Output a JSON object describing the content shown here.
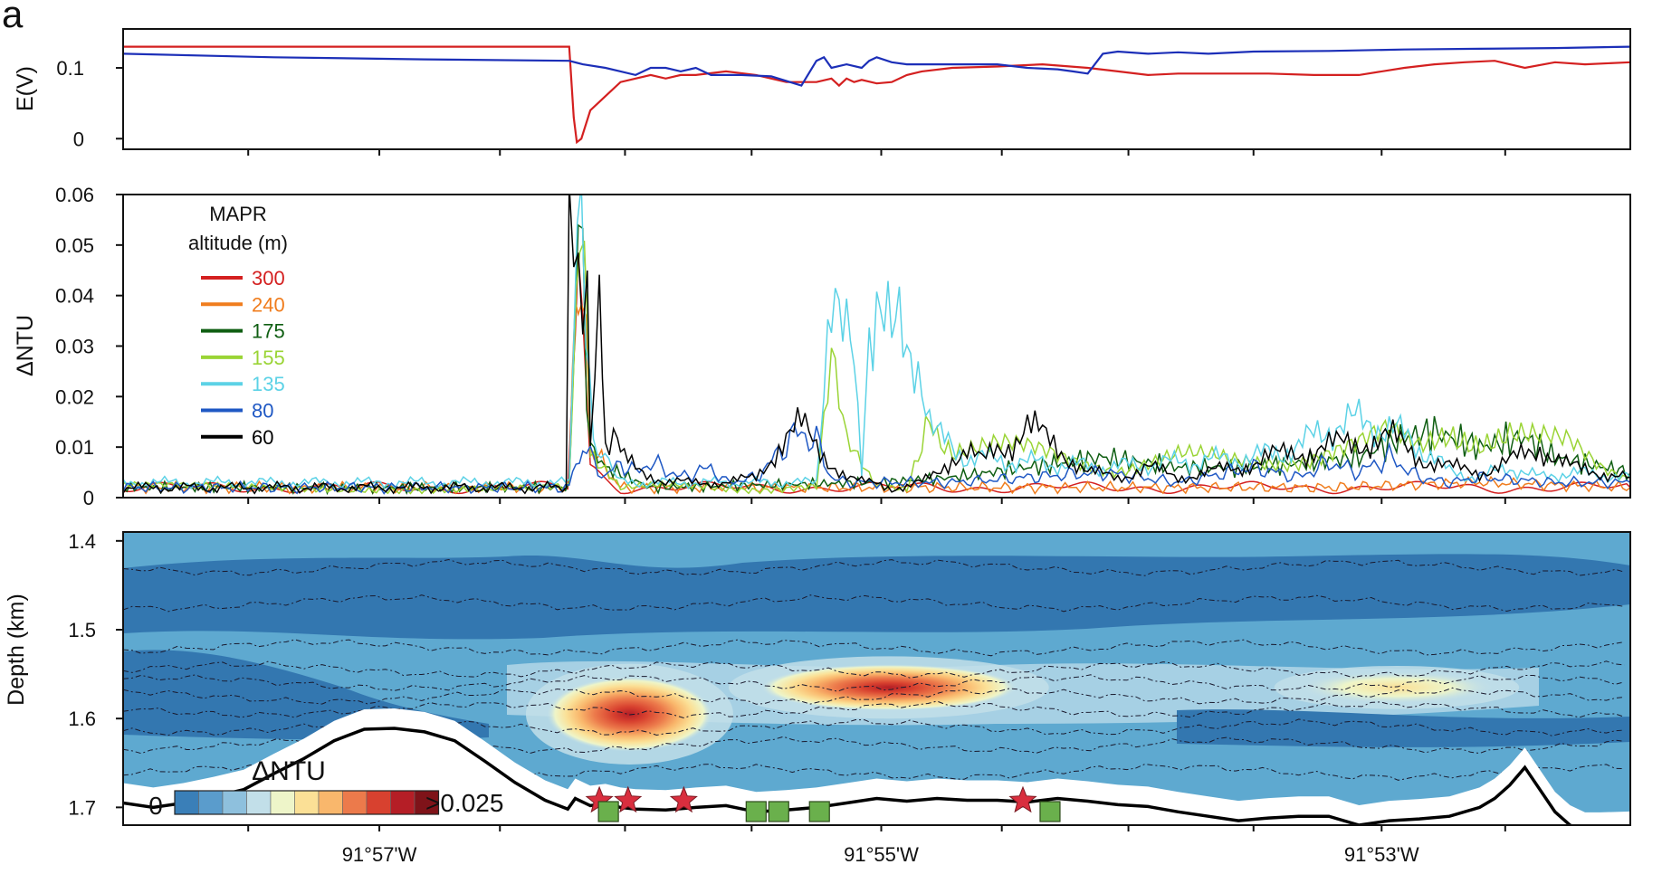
{
  "panel_label": "a",
  "chart_data": [
    {
      "type": "line",
      "ylabel": "E(V)",
      "ylim": [
        -0.015,
        0.155
      ],
      "yticks": [
        0,
        0.1
      ],
      "xlim": [
        0,
        100
      ],
      "series": [
        {
          "color": "#d42020",
          "x": [
            0,
            29.6,
            29.9,
            30.1,
            30.4,
            31,
            32,
            33,
            34,
            35,
            36,
            37,
            38,
            40,
            42,
            44,
            46,
            47,
            47.5,
            48,
            48.5,
            49,
            50,
            51,
            52,
            53,
            55,
            58,
            61,
            64,
            66,
            68,
            70,
            73,
            76,
            79,
            82,
            85,
            87,
            89,
            91,
            93,
            95,
            97,
            100
          ],
          "y": [
            0.13,
            0.13,
            0.03,
            -0.005,
            0,
            0.04,
            0.06,
            0.08,
            0.085,
            0.09,
            0.085,
            0.09,
            0.09,
            0.095,
            0.09,
            0.08,
            0.08,
            0.085,
            0.075,
            0.085,
            0.08,
            0.083,
            0.078,
            0.08,
            0.09,
            0.095,
            0.1,
            0.102,
            0.105,
            0.1,
            0.095,
            0.09,
            0.092,
            0.092,
            0.092,
            0.09,
            0.09,
            0.1,
            0.105,
            0.108,
            0.11,
            0.1,
            0.108,
            0.105,
            0.108
          ]
        },
        {
          "color": "#1c2fb8",
          "x": [
            0,
            10,
            20,
            29.6,
            30.5,
            32,
            33,
            34,
            35,
            36,
            37,
            38,
            39,
            40,
            41,
            43,
            45,
            46,
            46.5,
            47,
            48,
            49,
            49.5,
            50,
            51,
            52,
            55,
            58,
            60,
            62,
            63,
            64,
            65,
            66,
            68,
            70,
            72,
            75,
            80,
            85,
            90,
            95,
            100
          ],
          "y": [
            0.12,
            0.115,
            0.112,
            0.11,
            0.105,
            0.1,
            0.095,
            0.09,
            0.1,
            0.1,
            0.095,
            0.1,
            0.09,
            0.09,
            0.09,
            0.088,
            0.075,
            0.11,
            0.115,
            0.1,
            0.105,
            0.1,
            0.11,
            0.115,
            0.108,
            0.105,
            0.105,
            0.105,
            0.1,
            0.098,
            0.095,
            0.092,
            0.12,
            0.123,
            0.12,
            0.122,
            0.12,
            0.123,
            0.124,
            0.126,
            0.127,
            0.128,
            0.13
          ]
        }
      ]
    },
    {
      "type": "line",
      "ylabel": "ΔNTU",
      "ylim": [
        0,
        0.06
      ],
      "yticks": [
        0,
        0.01,
        0.02,
        0.03,
        0.04,
        0.05,
        0.06
      ],
      "xlim": [
        0,
        100
      ],
      "legend_title": [
        "MAPR",
        "altitude (m)"
      ],
      "legend_position": "top-left",
      "series": [
        {
          "name": "300",
          "color": "#d42020",
          "x": [
            0,
            29.5,
            29.8,
            30.2,
            31,
            33,
            100
          ],
          "y": [
            0.002,
            0.002,
            0.03,
            0.04,
            0.006,
            0.002,
            0.002
          ]
        },
        {
          "name": "240",
          "color": "#f07d1e",
          "x": [
            0,
            29.6,
            30,
            30.4,
            31,
            33,
            80,
            90,
            100
          ],
          "y": [
            0.002,
            0.002,
            0.04,
            0.05,
            0.01,
            0.002,
            0.002,
            0.003,
            0.002
          ]
        },
        {
          "name": "175",
          "color": "#0f5e12",
          "x": [
            0,
            29.6,
            30.2,
            30.5,
            31,
            32,
            35,
            50,
            55,
            60,
            65,
            70,
            75,
            82,
            85,
            87,
            90,
            93,
            95,
            100
          ],
          "y": [
            0.002,
            0.002,
            0.05,
            0.04,
            0.01,
            0.006,
            0.002,
            0.003,
            0.004,
            0.006,
            0.008,
            0.006,
            0.006,
            0.008,
            0.012,
            0.013,
            0.01,
            0.012,
            0.008,
            0.005
          ]
        },
        {
          "name": "155",
          "color": "#9ad435",
          "x": [
            0,
            29.6,
            30.3,
            30.6,
            31,
            33,
            40,
            46,
            47,
            48,
            50,
            51,
            52,
            53,
            53.5,
            54,
            55,
            58,
            62,
            66,
            70,
            74,
            78,
            82,
            84,
            86,
            88,
            90,
            92,
            94,
            96,
            98,
            100
          ],
          "y": [
            0.002,
            0.002,
            0.06,
            0.05,
            0.01,
            0.002,
            0.002,
            0.002,
            0.025,
            0.01,
            0.002,
            0.002,
            0.002,
            0.012,
            0.02,
            0.014,
            0.01,
            0.01,
            0.008,
            0.006,
            0.008,
            0.007,
            0.008,
            0.01,
            0.012,
            0.01,
            0.014,
            0.012,
            0.013,
            0.011,
            0.01,
            0.006,
            0.004
          ]
        },
        {
          "name": "135",
          "color": "#5cd2e6",
          "x": [
            0,
            29.6,
            30.4,
            30.7,
            31.2,
            33,
            40,
            46,
            46.5,
            47,
            47.5,
            48,
            48.5,
            49,
            49.5,
            50,
            50.5,
            51,
            51.5,
            52,
            52.5,
            53,
            53.5,
            54,
            56,
            60,
            65,
            70,
            75,
            78,
            80,
            82,
            83,
            85,
            86,
            87,
            88,
            90,
            92,
            94,
            96,
            100
          ],
          "y": [
            0.003,
            0.003,
            0.06,
            0.04,
            0.01,
            0.003,
            0.003,
            0.003,
            0.025,
            0.047,
            0.036,
            0.03,
            0.025,
            0.005,
            0.035,
            0.042,
            0.038,
            0.03,
            0.032,
            0.028,
            0.03,
            0.025,
            0.015,
            0.012,
            0.008,
            0.007,
            0.006,
            0.007,
            0.008,
            0.01,
            0.014,
            0.015,
            0.015,
            0.012,
            0.01,
            0.008,
            0.005,
            0.004,
            0.006,
            0.004,
            0.005,
            0.004
          ]
        },
        {
          "name": "80",
          "color": "#1f58c4",
          "x": [
            0,
            29.6,
            30.5,
            31,
            32,
            33,
            34,
            35,
            37,
            39,
            40,
            42,
            43,
            44,
            45,
            46,
            47,
            48,
            50,
            55,
            60,
            65,
            70,
            75,
            78,
            80,
            82,
            84,
            86,
            88,
            90,
            95,
            100
          ],
          "y": [
            0.002,
            0.002,
            0.01,
            0.008,
            0.004,
            0.007,
            0.005,
            0.007,
            0.004,
            0.006,
            0.003,
            0.004,
            0.007,
            0.011,
            0.013,
            0.011,
            0.004,
            0.003,
            0.003,
            0.003,
            0.004,
            0.005,
            0.003,
            0.006,
            0.004,
            0.007,
            0.005,
            0.008,
            0.004,
            0.003,
            0.004,
            0.003,
            0.003
          ]
        },
        {
          "name": "60",
          "color": "#000000",
          "x": [
            0,
            29.4,
            29.6,
            29.9,
            30.2,
            30.5,
            30.8,
            31,
            31.6,
            32,
            32.8,
            33,
            34,
            36,
            40,
            42,
            43,
            44,
            45,
            46,
            47,
            48,
            49,
            50,
            51,
            52,
            53,
            54,
            55,
            56,
            57,
            58,
            59,
            60,
            62,
            64,
            66,
            68,
            70,
            72,
            74,
            76,
            78,
            80,
            82,
            84,
            86,
            88,
            90,
            92,
            94,
            96,
            98,
            100
          ],
          "y": [
            0.002,
            0.002,
            0.06,
            0.05,
            0.06,
            0.04,
            0.05,
            0.015,
            0.04,
            0.01,
            0.012,
            0.008,
            0.006,
            0.003,
            0.003,
            0.004,
            0.008,
            0.012,
            0.014,
            0.01,
            0.007,
            0.004,
            0.003,
            0.003,
            0.002,
            0.002,
            0.003,
            0.005,
            0.008,
            0.009,
            0.007,
            0.01,
            0.011,
            0.014,
            0.01,
            0.005,
            0.004,
            0.006,
            0.004,
            0.005,
            0.006,
            0.008,
            0.009,
            0.01,
            0.011,
            0.012,
            0.008,
            0.006,
            0.005,
            0.007,
            0.01,
            0.006,
            0.005,
            0.004
          ]
        }
      ]
    },
    {
      "type": "heatmap",
      "ylabel": "Depth (km)",
      "ylim": [
        1.39,
        1.72
      ],
      "yticks": [
        1.4,
        1.5,
        1.6,
        1.7
      ],
      "y_reversed": true,
      "xlim": [
        0,
        100
      ],
      "xtick_labels": [
        {
          "x": 17,
          "label": "91°57'W"
        },
        {
          "x": 50.3,
          "label": "91°55'W"
        },
        {
          "x": 83.5,
          "label": "91°53'W"
        }
      ],
      "minor_xticks": [
        8.3,
        25,
        33.3,
        41.7,
        58.3,
        66.7,
        75,
        91.7
      ],
      "colorbar": {
        "label": "ΔNTU",
        "min_label": "0",
        "max_label": ">0.025",
        "colors": [
          "#3a7fb8",
          "#5a9ccc",
          "#8ec0dd",
          "#c2dfe9",
          "#eef5c9",
          "#fbe096",
          "#f9b76c",
          "#ec7a4b",
          "#d8412f",
          "#b51e26",
          "#7f1319"
        ]
      },
      "background_color": "#5ea9d0",
      "dark_band_color": "#3377b0",
      "light_band_color": "#a6d0e4",
      "hotspots": [
        {
          "x": 33.6,
          "depth": 1.595,
          "rx": 5.5,
          "rdepth": 0.042
        },
        {
          "x": 50.8,
          "depth": 1.565,
          "rx": 8.5,
          "rdepth": 0.026
        },
        {
          "x": 84.5,
          "depth": 1.565,
          "rx": 6.5,
          "rdepth": 0.018,
          "peak": 0.45
        }
      ],
      "seafloor": {
        "x": [
          0,
          2,
          4,
          6,
          8,
          10,
          12,
          14,
          16,
          18,
          20,
          22,
          24,
          26,
          28,
          29.5,
          30,
          31,
          32,
          33,
          34,
          36,
          38,
          40,
          42,
          44,
          46,
          48,
          50,
          52,
          54,
          56,
          58,
          60,
          62,
          64,
          66,
          68,
          70,
          72,
          74,
          76,
          78,
          80,
          82,
          84,
          86,
          88,
          90,
          91,
          92,
          93,
          94,
          95,
          96,
          97,
          98,
          100
        ],
        "depth": [
          1.695,
          1.7,
          1.695,
          1.688,
          1.68,
          1.662,
          1.645,
          1.625,
          1.612,
          1.611,
          1.615,
          1.625,
          1.648,
          1.672,
          1.692,
          1.702,
          1.69,
          1.698,
          1.696,
          1.7,
          1.702,
          1.703,
          1.7,
          1.698,
          1.705,
          1.703,
          1.7,
          1.695,
          1.69,
          1.693,
          1.69,
          1.692,
          1.692,
          1.694,
          1.69,
          1.693,
          1.697,
          1.699,
          1.705,
          1.71,
          1.715,
          1.712,
          1.71,
          1.71,
          1.72,
          1.715,
          1.713,
          1.71,
          1.7,
          1.69,
          1.675,
          1.655,
          1.68,
          1.705,
          1.72,
          1.728,
          1.728,
          1.727
        ]
      },
      "markers": [
        {
          "type": "star",
          "x": 31.6,
          "color": "#d92e3e"
        },
        {
          "type": "star",
          "x": 33.5,
          "color": "#d92e3e"
        },
        {
          "type": "star",
          "x": 37.2,
          "color": "#d92e3e"
        },
        {
          "type": "star",
          "x": 59.7,
          "color": "#d92e3e"
        },
        {
          "type": "square",
          "x": 32.2,
          "color": "#6ab04c"
        },
        {
          "type": "square",
          "x": 42,
          "color": "#6ab04c"
        },
        {
          "type": "square",
          "x": 43.5,
          "color": "#6ab04c"
        },
        {
          "type": "square",
          "x": 46.2,
          "color": "#6ab04c"
        },
        {
          "type": "square",
          "x": 61.5,
          "color": "#6ab04c"
        }
      ]
    }
  ]
}
